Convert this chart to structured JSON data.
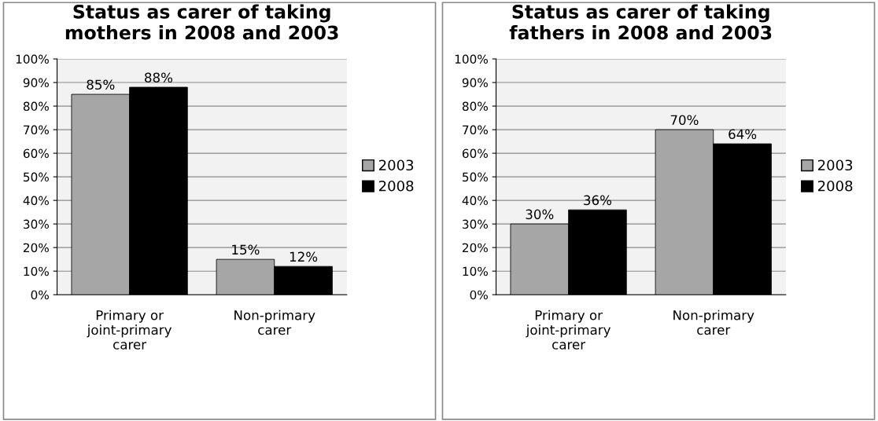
{
  "chart_data": [
    {
      "type": "bar",
      "title": "Status as carer of taking\nmothers in 2008 and 2003",
      "categories": [
        "Primary or\njoint-primary\ncarer",
        "Non-primary\ncarer"
      ],
      "series": [
        {
          "name": "2003",
          "color": "#a6a6a6",
          "values": [
            85,
            15
          ],
          "value_labels": [
            "85%",
            "15%"
          ]
        },
        {
          "name": "2008",
          "color": "#000000",
          "values": [
            88,
            12
          ],
          "value_labels": [
            "88%",
            "12%"
          ]
        }
      ],
      "ylim": [
        0,
        100
      ],
      "yticks": [
        {
          "value": 0,
          "label": "0%"
        },
        {
          "value": 10,
          "label": "10%"
        },
        {
          "value": 20,
          "label": "20%"
        },
        {
          "value": 30,
          "label": "30%"
        },
        {
          "value": 40,
          "label": "40%"
        },
        {
          "value": 50,
          "label": "50%"
        },
        {
          "value": 60,
          "label": "60%"
        },
        {
          "value": 70,
          "label": "70%"
        },
        {
          "value": 80,
          "label": "80%"
        },
        {
          "value": 90,
          "label": "90%"
        },
        {
          "value": 100,
          "label": "100%"
        }
      ],
      "grid": "y",
      "legend": "right"
    },
    {
      "type": "bar",
      "title": "Status as carer of taking\nfathers in 2008 and 2003",
      "categories": [
        "Primary or\njoint-primary\ncarer",
        "Non-primary\ncarer"
      ],
      "series": [
        {
          "name": "2003",
          "color": "#a6a6a6",
          "values": [
            30,
            70
          ],
          "value_labels": [
            "30%",
            "70%"
          ]
        },
        {
          "name": "2008",
          "color": "#000000",
          "values": [
            36,
            64
          ],
          "value_labels": [
            "36%",
            "64%"
          ]
        }
      ],
      "ylim": [
        0,
        100
      ],
      "yticks": [
        {
          "value": 0,
          "label": "0%"
        },
        {
          "value": 10,
          "label": "10%"
        },
        {
          "value": 20,
          "label": "20%"
        },
        {
          "value": 30,
          "label": "30%"
        },
        {
          "value": 40,
          "label": "40%"
        },
        {
          "value": 50,
          "label": "50%"
        },
        {
          "value": 60,
          "label": "60%"
        },
        {
          "value": 70,
          "label": "70%"
        },
        {
          "value": 80,
          "label": "80%"
        },
        {
          "value": 90,
          "label": "90%"
        },
        {
          "value": 100,
          "label": "100%"
        }
      ],
      "grid": "y",
      "legend": "right"
    }
  ]
}
